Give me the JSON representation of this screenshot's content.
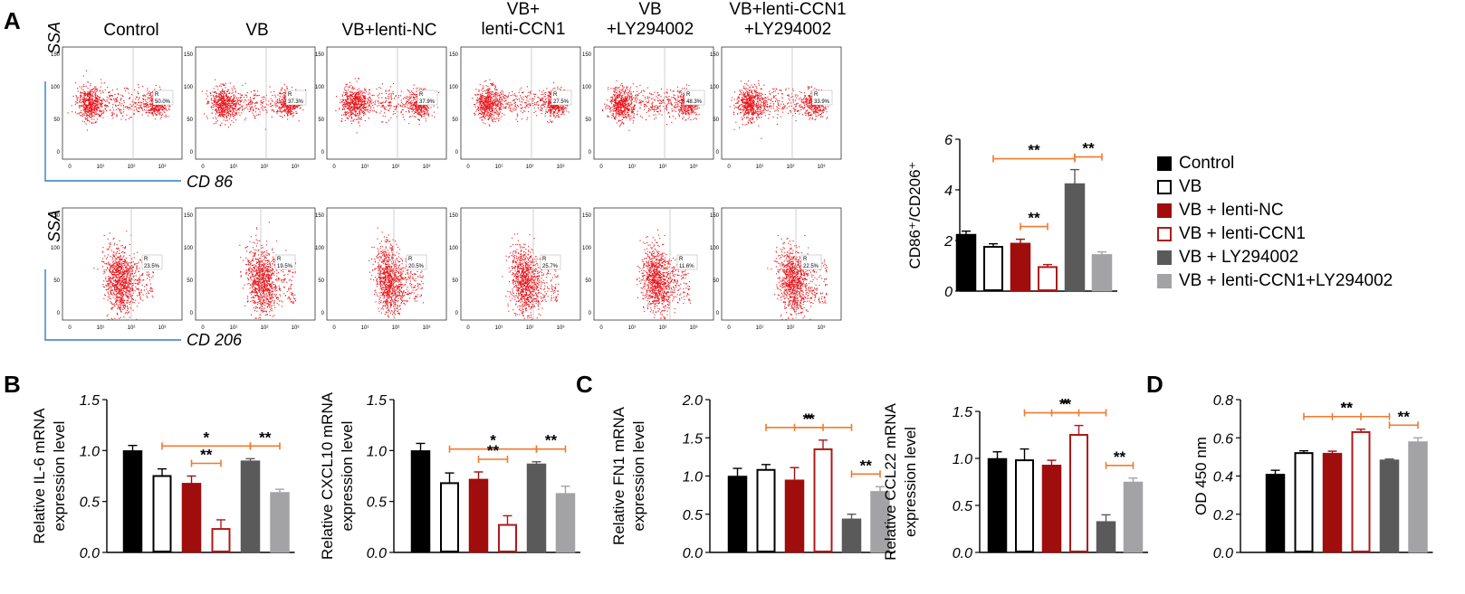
{
  "panel_labels": {
    "a": "A",
    "b": "B",
    "c": "C",
    "d": "D"
  },
  "flow": {
    "columns": [
      "Control",
      "VB",
      "VB+lenti-NC",
      "VB+\nlenti-CCN1",
      "VB\n+LY294002",
      "VB+lenti-CCN1\n+LY294002"
    ],
    "rows": [
      {
        "y_axis": "SSA",
        "x_axis": "CD 86",
        "gate": "R",
        "percents": [
          "50.0%",
          "37.3%",
          "37.9%",
          "27.5%",
          "48.3%",
          "33.9%"
        ]
      },
      {
        "y_axis": "SSA",
        "x_axis": "CD 206",
        "gate": "R",
        "percents": [
          "23.5%",
          "19.5%",
          "20.5%",
          "25.7%",
          "11.6%",
          "22.5%"
        ]
      }
    ],
    "y_ticks": [
      "150",
      "100",
      "50",
      "0"
    ],
    "x_ticks": [
      "0",
      "10¹",
      "10²",
      "10³"
    ]
  },
  "legend": {
    "items": [
      {
        "label": "Control",
        "fill": "#000000",
        "stroke": "#000000"
      },
      {
        "label": "VB",
        "fill": "#ffffff",
        "stroke": "#000000"
      },
      {
        "label": "VB + lenti-NC",
        "fill": "#a00d0d",
        "stroke": "#a00d0d"
      },
      {
        "label": "VB + lenti-CCN1",
        "fill": "#ffffff",
        "stroke": "#b01818"
      },
      {
        "label": "VB + LY294002",
        "fill": "#5a5a5a",
        "stroke": "#5a5a5a"
      },
      {
        "label": "VB + lenti-CCN1+LY294002",
        "fill": "#a3a3a6",
        "stroke": "#a3a3a6"
      }
    ]
  },
  "chart_data": [
    {
      "id": "ratio",
      "type": "bar",
      "title": "",
      "xlabel": "",
      "ylabel": "CD86⁺/CD206⁺",
      "categories": [
        "Control",
        "VB",
        "VB + lenti-NC",
        "VB + lenti-CCN1",
        "VB + LY294002",
        "VB + lenti-CCN1+LY294002"
      ],
      "values": [
        2.25,
        1.75,
        1.9,
        0.95,
        4.25,
        1.45
      ],
      "errors": [
        0.12,
        0.12,
        0.15,
        0.1,
        0.55,
        0.1
      ],
      "ylim": [
        0,
        6
      ],
      "yticks": [
        "0",
        "2",
        "4",
        "6"
      ],
      "ytick_values": [
        0,
        2,
        4,
        6
      ],
      "sig": [
        {
          "from": 1,
          "to": 4,
          "label": "**"
        },
        {
          "from": 4,
          "to": 5,
          "label": "**"
        },
        {
          "from": 2,
          "to": 3,
          "label": "**"
        }
      ]
    },
    {
      "id": "il6",
      "type": "bar",
      "title": "",
      "xlabel": "",
      "ylabel": "Relative IL-6 mRNA\nexpression level",
      "categories": [
        "Control",
        "VB",
        "VB + lenti-NC",
        "VB + lenti-CCN1",
        "VB + LY294002",
        "VB + lenti-CCN1+LY294002"
      ],
      "values": [
        1.0,
        0.75,
        0.68,
        0.23,
        0.9,
        0.59
      ],
      "errors": [
        0.05,
        0.07,
        0.07,
        0.09,
        0.02,
        0.03
      ],
      "ylim": [
        0,
        1.5
      ],
      "yticks": [
        "0.0",
        "0.5",
        "1.0",
        "1.5"
      ],
      "ytick_values": [
        0,
        0.5,
        1.0,
        1.5
      ],
      "sig": [
        {
          "from": 1,
          "to": 4,
          "label": "*"
        },
        {
          "from": 2,
          "to": 3,
          "label": "**"
        },
        {
          "from": 4,
          "to": 5,
          "label": "**"
        }
      ]
    },
    {
      "id": "cxcl10",
      "type": "bar",
      "title": "",
      "xlabel": "",
      "ylabel": "Relative CXCL10 mRNA\nexpression level",
      "categories": [
        "Control",
        "VB",
        "VB + lenti-NC",
        "VB + lenti-CCN1",
        "VB + LY294002",
        "VB + lenti-CCN1+LY294002"
      ],
      "values": [
        1.0,
        0.68,
        0.72,
        0.27,
        0.87,
        0.58
      ],
      "errors": [
        0.07,
        0.1,
        0.07,
        0.09,
        0.02,
        0.07
      ],
      "ylim": [
        0,
        1.5
      ],
      "yticks": [
        "0.0",
        "0.5",
        "1.0",
        "1.5"
      ],
      "ytick_values": [
        0,
        0.5,
        1.0,
        1.5
      ],
      "sig": [
        {
          "from": 1,
          "to": 4,
          "label": "*"
        },
        {
          "from": 2,
          "to": 3,
          "label": "**"
        },
        {
          "from": 4,
          "to": 5,
          "label": "**"
        }
      ]
    },
    {
      "id": "fn1",
      "type": "bar",
      "title": "",
      "xlabel": "",
      "ylabel": "Relative FN1 mRNA\nexpression level",
      "categories": [
        "Control",
        "VB",
        "VB + lenti-NC",
        "VB + lenti-CCN1",
        "VB + LY294002",
        "VB + lenti-CCN1+LY294002"
      ],
      "values": [
        1.0,
        1.08,
        0.95,
        1.35,
        0.44,
        0.8
      ],
      "errors": [
        0.1,
        0.07,
        0.16,
        0.12,
        0.06,
        0.06
      ],
      "ylim": [
        0,
        2.0
      ],
      "yticks": [
        "0.0",
        "0.5",
        "1.0",
        "1.5",
        "2.0"
      ],
      "ytick_values": [
        0,
        0.5,
        1.0,
        1.5,
        2.0
      ],
      "sig": [
        {
          "from": 1,
          "to": 4,
          "label": "**"
        },
        {
          "from": 2,
          "to": 3,
          "label": "*"
        },
        {
          "from": 4,
          "to": 5,
          "label": "**"
        }
      ]
    },
    {
      "id": "ccl22",
      "type": "bar",
      "title": "",
      "xlabel": "",
      "ylabel": "Relative CCL22 mRNA\nexpression level",
      "categories": [
        "Control",
        "VB",
        "VB + lenti-NC",
        "VB + lenti-CCN1",
        "VB + LY294002",
        "VB + lenti-CCN1+LY294002"
      ],
      "values": [
        1.0,
        0.98,
        0.93,
        1.25,
        0.33,
        0.75
      ],
      "errors": [
        0.07,
        0.12,
        0.05,
        0.1,
        0.07,
        0.04
      ],
      "ylim": [
        0,
        1.5
      ],
      "yticks": [
        "0.0",
        "0.5",
        "1.0",
        "1.5"
      ],
      "ytick_values": [
        0,
        0.5,
        1.0,
        1.5
      ],
      "sig": [
        {
          "from": 1,
          "to": 4,
          "label": "**"
        },
        {
          "from": 2,
          "to": 3,
          "label": "*"
        },
        {
          "from": 4,
          "to": 5,
          "label": "**"
        }
      ]
    },
    {
      "id": "od",
      "type": "bar",
      "title": "",
      "xlabel": "",
      "ylabel": "OD 450 nm",
      "categories": [
        "Control",
        "VB",
        "VB + lenti-NC",
        "VB + lenti-CCN1",
        "VB + LY294002",
        "VB + lenti-CCN1+LY294002"
      ],
      "values": [
        0.41,
        0.52,
        0.52,
        0.63,
        0.485,
        0.58
      ],
      "errors": [
        0.02,
        0.012,
        0.01,
        0.015,
        0.004,
        0.02
      ],
      "ylim": [
        0,
        0.8
      ],
      "yticks": [
        "0.0",
        "0.2",
        "0.4",
        "0.6",
        "0.8"
      ],
      "ytick_values": [
        0,
        0.2,
        0.4,
        0.6,
        0.8
      ],
      "sig": [
        {
          "from": 1,
          "to": 4,
          "label": "**"
        },
        {
          "from": 2,
          "to": 3,
          "label": "**"
        },
        {
          "from": 4,
          "to": 5,
          "label": "**"
        }
      ]
    }
  ]
}
